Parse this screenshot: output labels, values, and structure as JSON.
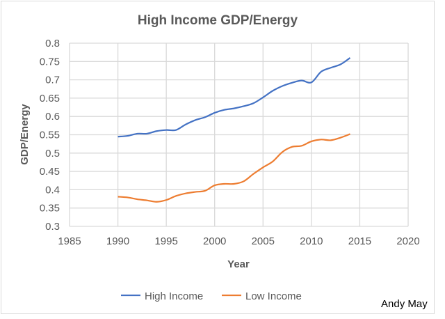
{
  "chart_data": {
    "type": "line",
    "title": "High Income GDP/Energy",
    "xlabel": "Year",
    "ylabel": "GDP/Energy",
    "xlim": [
      1985,
      2020
    ],
    "ylim": [
      0.3,
      0.8
    ],
    "xticks": [
      "1985",
      "1990",
      "1995",
      "2000",
      "2005",
      "2010",
      "2015",
      "2020"
    ],
    "yticks": [
      "0.3",
      "0.35",
      "0.4",
      "0.45",
      "0.5",
      "0.55",
      "0.6",
      "0.65",
      "0.7",
      "0.75",
      "0.8"
    ],
    "grid": true,
    "legend_position": "bottom",
    "x": [
      1990,
      1991,
      1992,
      1993,
      1994,
      1995,
      1996,
      1997,
      1998,
      1999,
      2000,
      2001,
      2002,
      2003,
      2004,
      2005,
      2006,
      2007,
      2008,
      2009,
      2010,
      2011,
      2012,
      2013,
      2014
    ],
    "series": [
      {
        "name": "High Income",
        "color": "#4472c4",
        "values": [
          0.545,
          0.547,
          0.553,
          0.553,
          0.56,
          0.563,
          0.563,
          0.578,
          0.59,
          0.598,
          0.61,
          0.618,
          0.622,
          0.628,
          0.636,
          0.652,
          0.67,
          0.683,
          0.692,
          0.698,
          0.693,
          0.722,
          0.733,
          0.742,
          0.76
        ]
      },
      {
        "name": "Low Income",
        "color": "#ed7d31",
        "values": [
          0.381,
          0.379,
          0.374,
          0.371,
          0.367,
          0.372,
          0.383,
          0.39,
          0.394,
          0.397,
          0.412,
          0.416,
          0.416,
          0.423,
          0.443,
          0.461,
          0.477,
          0.503,
          0.517,
          0.52,
          0.532,
          0.537,
          0.535,
          0.542,
          0.552
        ]
      }
    ],
    "annotation": "Andy May"
  }
}
